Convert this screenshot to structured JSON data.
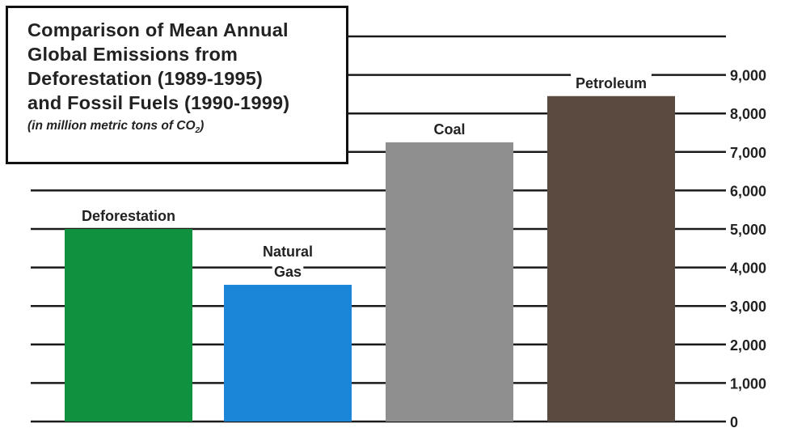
{
  "chart_data": {
    "type": "bar",
    "title_lines": [
      "Comparison of Mean Annual",
      "Global Emissions from",
      "Deforestation (1989-1995)",
      "and Fossil Fuels (1990-1999)"
    ],
    "subtitle": "(in million metric tons of CO",
    "subtitle_sub": "2",
    "subtitle_end": ")",
    "categories": [
      "Deforestation",
      "Natural Gas",
      "Coal",
      "Petroleum"
    ],
    "label_lines": [
      [
        "Deforestation"
      ],
      [
        "Natural",
        "Gas"
      ],
      [
        "Coal"
      ],
      [
        "Petroleum"
      ]
    ],
    "values": [
      5000,
      3550,
      7250,
      8450
    ],
    "colors": [
      "#0f9140",
      "#1b86d8",
      "#8f8f8f",
      "#5a4a40"
    ],
    "ylim": [
      0,
      10000
    ],
    "yticks": [
      0,
      1000,
      2000,
      3000,
      4000,
      5000,
      6000,
      7000,
      8000,
      9000
    ],
    "ytick_labels": [
      "0",
      "1,000",
      "2,000",
      "3,000",
      "4,000",
      "5,000",
      "6,000",
      "7,000",
      "8,000",
      "9,000"
    ],
    "gridlines": [
      0,
      1000,
      2000,
      3000,
      4000,
      5000,
      6000,
      7000,
      8000,
      9000,
      10000
    ],
    "grid": true,
    "xlabel": "",
    "ylabel": ""
  }
}
